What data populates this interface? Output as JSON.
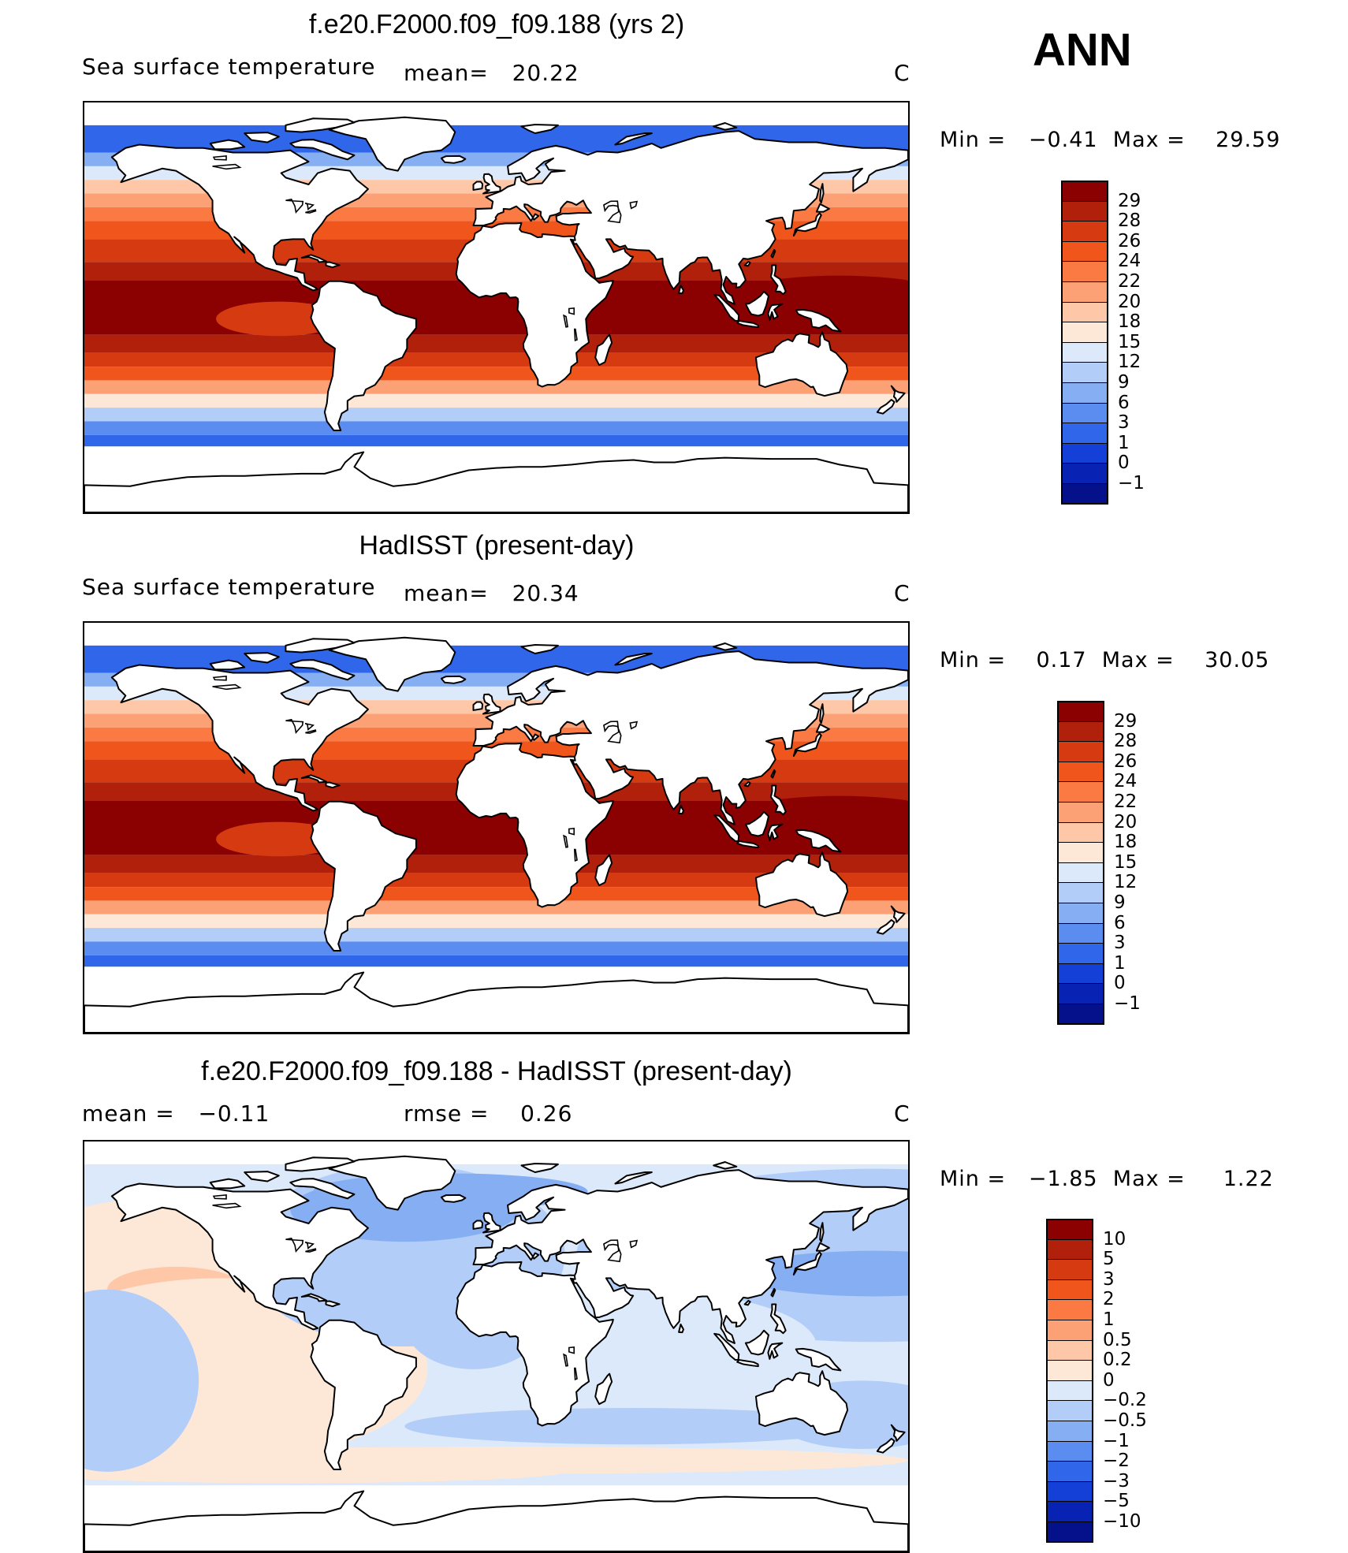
{
  "season": "ANN",
  "panels": [
    {
      "title": "f.e20.F2000.f09_f09.188 (yrs 2)",
      "subtitle_left": "Sea surface temperature",
      "subtitle_mid": "mean=   20.22",
      "unit": "C",
      "minmax": "Min =   −0.41  Max =    29.59",
      "kind": "field",
      "colorbar_labels": [
        "29",
        "28",
        "26",
        "24",
        "22",
        "20",
        "18",
        "15",
        "12",
        "9",
        "6",
        "3",
        "1",
        "0",
        "−1"
      ],
      "colorbar_colors": [
        "#8b0000",
        "#b0200a",
        "#d63a10",
        "#f0561c",
        "#fb7a44",
        "#fca075",
        "#fdc7a8",
        "#fde8d8",
        "#dbe9fb",
        "#b2cdf7",
        "#86aef2",
        "#5b8cef",
        "#2f66ea",
        "#1540d8",
        "#0823b4",
        "#04118a"
      ]
    },
    {
      "title": "HadISST (present-day)",
      "subtitle_left": "Sea surface temperature",
      "subtitle_mid": "mean=   20.34",
      "unit": "C",
      "minmax": "Min =    0.17  Max =    30.05",
      "kind": "field",
      "colorbar_labels": [
        "29",
        "28",
        "26",
        "24",
        "22",
        "20",
        "18",
        "15",
        "12",
        "9",
        "6",
        "3",
        "1",
        "0",
        "−1"
      ],
      "colorbar_colors": [
        "#8b0000",
        "#b0200a",
        "#d63a10",
        "#f0561c",
        "#fb7a44",
        "#fca075",
        "#fdc7a8",
        "#fde8d8",
        "#dbe9fb",
        "#b2cdf7",
        "#86aef2",
        "#5b8cef",
        "#2f66ea",
        "#1540d8",
        "#0823b4",
        "#04118a"
      ]
    },
    {
      "title": "f.e20.F2000.f09_f09.188 - HadISST (present-day)",
      "subtitle_left": "mean =   −0.11",
      "subtitle_mid": "rmse =    0.26",
      "unit": "C",
      "minmax": "Min =   −1.85  Max =     1.22",
      "kind": "diff",
      "colorbar_labels": [
        "10",
        "5",
        "3",
        "2",
        "1",
        "0.5",
        "0.2",
        "0",
        "−0.2",
        "−0.5",
        "−1",
        "−2",
        "−3",
        "−5",
        "−10"
      ],
      "colorbar_colors": [
        "#8b0000",
        "#b0200a",
        "#d63a10",
        "#f0561c",
        "#fb7a44",
        "#fca075",
        "#fdc7a8",
        "#fde8d8",
        "#dbe9fb",
        "#b2cdf7",
        "#86aef2",
        "#5b8cef",
        "#2f66ea",
        "#1540d8",
        "#0823b4",
        "#04118a"
      ]
    }
  ]
}
